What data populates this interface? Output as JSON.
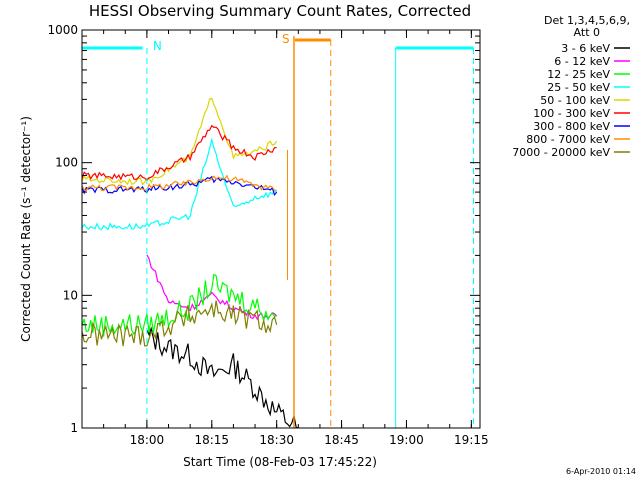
{
  "chart_data": {
    "type": "line",
    "title": "HESSI Observing Summary Count Rates, Corrected",
    "xlabel": "Start Time (08-Feb-03 17:45:22)",
    "ylabel": "Corrected Count Rate (s⁻¹ detector⁻¹)",
    "y_scale": "log",
    "ylim": [
      1,
      1000
    ],
    "xlim_minutes_after_1745": [
      0,
      92
    ],
    "x_ticks": [
      {
        "label": "18:00",
        "minute": 15
      },
      {
        "label": "18:15",
        "minute": 30
      },
      {
        "label": "18:30",
        "minute": 45
      },
      {
        "label": "18:45",
        "minute": 60
      },
      {
        "label": "19:00",
        "minute": 75
      },
      {
        "label": "19:15",
        "minute": 90
      }
    ],
    "y_ticks": [
      {
        "label": "1",
        "value": 1
      },
      {
        "label": "10",
        "value": 10
      },
      {
        "label": "100",
        "value": 100
      },
      {
        "label": "1000",
        "value": 1000
      }
    ],
    "legend_header": [
      "Det 1,3,4,5,6,9,",
      "Att 0"
    ],
    "legend_position": "right",
    "series": [
      {
        "name": "3 - 6 keV",
        "color": "#000000",
        "points": [
          [
            "18:00",
            5
          ],
          [
            "18:05",
            4
          ],
          [
            "18:10",
            3.5
          ],
          [
            "18:15",
            2.5
          ],
          [
            "18:20",
            3
          ],
          [
            "18:25",
            2
          ],
          [
            "18:30",
            1.3
          ],
          [
            "18:35",
            1
          ]
        ]
      },
      {
        "name": "6 - 12 keV",
        "color": "#ff00ff",
        "points": [
          [
            "18:00",
            20
          ],
          [
            "18:05",
            9
          ],
          [
            "18:10",
            8
          ],
          [
            "18:15",
            10
          ],
          [
            "18:20",
            8
          ],
          [
            "18:25",
            7
          ],
          [
            "18:30",
            7
          ]
        ]
      },
      {
        "name": "12 - 25 keV",
        "color": "#00ff00",
        "points": [
          [
            "17:45",
            6
          ],
          [
            "18:00",
            6
          ],
          [
            "18:10",
            8
          ],
          [
            "18:15",
            12
          ],
          [
            "18:20",
            10
          ],
          [
            "18:30",
            7
          ]
        ]
      },
      {
        "name": "25 - 50 keV",
        "color": "#00ffff",
        "points": [
          [
            "17:45",
            33
          ],
          [
            "18:00",
            33
          ],
          [
            "18:10",
            40
          ],
          [
            "18:15",
            145
          ],
          [
            "18:20",
            45
          ],
          [
            "18:25",
            55
          ],
          [
            "18:30",
            60
          ]
        ]
      },
      {
        "name": "50 - 100 keV",
        "color": "#d8d800",
        "points": [
          [
            "17:45",
            75
          ],
          [
            "18:00",
            72
          ],
          [
            "18:10",
            110
          ],
          [
            "18:15",
            320
          ],
          [
            "18:20",
            110
          ],
          [
            "18:25",
            120
          ],
          [
            "18:30",
            145
          ]
        ]
      },
      {
        "name": "100 - 300 keV",
        "color": "#ff0000",
        "points": [
          [
            "17:45",
            80
          ],
          [
            "18:00",
            78
          ],
          [
            "18:10",
            110
          ],
          [
            "18:15",
            190
          ],
          [
            "18:20",
            130
          ],
          [
            "18:25",
            110
          ],
          [
            "18:30",
            130
          ]
        ]
      },
      {
        "name": "300 - 800 keV",
        "color": "#0000ff",
        "points": [
          [
            "17:45",
            62
          ],
          [
            "18:00",
            63
          ],
          [
            "18:10",
            68
          ],
          [
            "18:15",
            75
          ],
          [
            "18:20",
            72
          ],
          [
            "18:25",
            66
          ],
          [
            "18:30",
            60
          ]
        ]
      },
      {
        "name": "800 - 7000 keV",
        "color": "#ff8c00",
        "points": [
          [
            "17:45",
            65
          ],
          [
            "18:00",
            65
          ],
          [
            "18:10",
            70
          ],
          [
            "18:15",
            78
          ],
          [
            "18:20",
            75
          ],
          [
            "18:25",
            68
          ],
          [
            "18:30",
            62
          ]
        ]
      },
      {
        "name": "7000 - 20000 keV",
        "color": "#808000",
        "points": [
          [
            "17:45",
            5
          ],
          [
            "18:00",
            5
          ],
          [
            "18:05",
            6
          ],
          [
            "18:10",
            7
          ],
          [
            "18:15",
            8
          ],
          [
            "18:20",
            7
          ],
          [
            "18:30",
            6
          ]
        ]
      }
    ],
    "annotations": [
      {
        "text": "N",
        "color": "#00ffff"
      },
      {
        "text": "S",
        "color": "#ff8c00"
      }
    ]
  },
  "footer_timestamp": "6-Apr-2010 01:14"
}
